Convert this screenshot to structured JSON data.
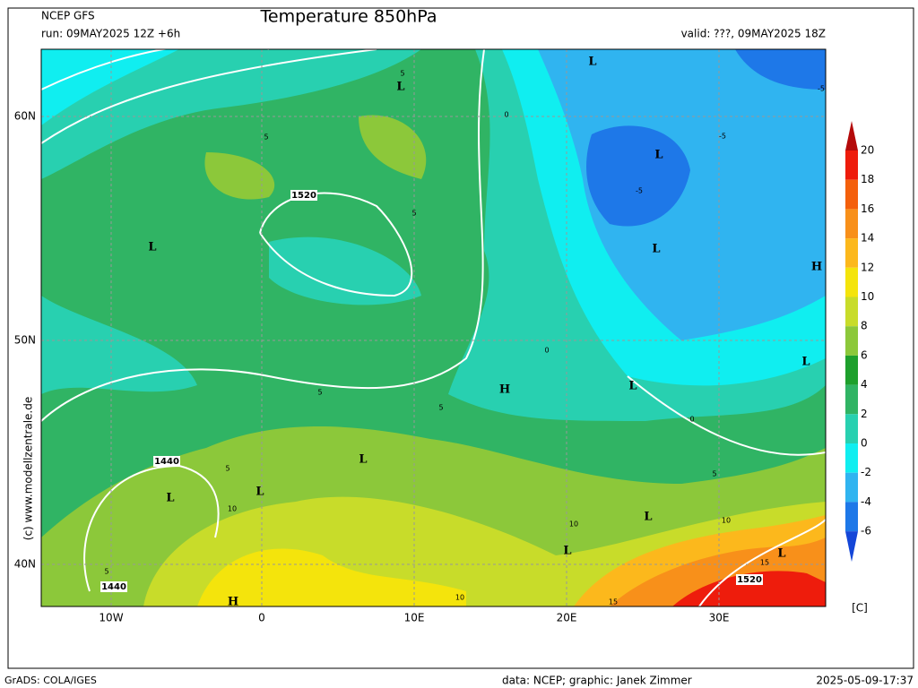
{
  "header": {
    "model": "NCEP GFS",
    "run": "run: 09MAY2025 12Z +6h",
    "title": "Temperature 850hPa",
    "valid": "valid: ???, 09MAY2025 18Z"
  },
  "map": {
    "lat_labels": [
      "60N",
      "50N",
      "40N"
    ],
    "lon_labels": [
      "10W",
      "0",
      "10E",
      "20E",
      "30E"
    ],
    "pressure_centres": [
      "L",
      "L",
      "L",
      "L",
      "L",
      "H",
      "L",
      "H",
      "L",
      "L",
      "L",
      "L",
      "L",
      "L",
      "L",
      "H"
    ],
    "contour_labels": [
      "1520",
      "1520",
      "1440",
      "1440"
    ],
    "isotherm_labels": [
      "5",
      "5",
      "5",
      "5",
      "5",
      "5",
      "5",
      "5",
      "0",
      "0",
      "0",
      "-5",
      "-5",
      "-5",
      "10",
      "10",
      "10",
      "10",
      "15",
      "15"
    ],
    "copyright": "(c) www.modellzentrale.de"
  },
  "colorbar": {
    "levels": [
      20,
      18,
      16,
      14,
      12,
      10,
      8,
      6,
      4,
      2,
      0,
      -2,
      -4,
      -6
    ],
    "colors": [
      "#b40a0a",
      "#ee1c0c",
      "#f4600c",
      "#f8901a",
      "#fcb81c",
      "#f4e40c",
      "#c8dc2a",
      "#8cc83a",
      "#1ea02c",
      "#30b464",
      "#28d0b0",
      "#10eef0",
      "#30b4f0",
      "#1e78e8",
      "#1446d8"
    ],
    "unit": "[C]"
  },
  "footer": {
    "software": "GrADS: COLA/IGES",
    "credits": "data: NCEP; graphic: Janek Zimmer",
    "timestamp": "2025-05-09-17:37"
  }
}
